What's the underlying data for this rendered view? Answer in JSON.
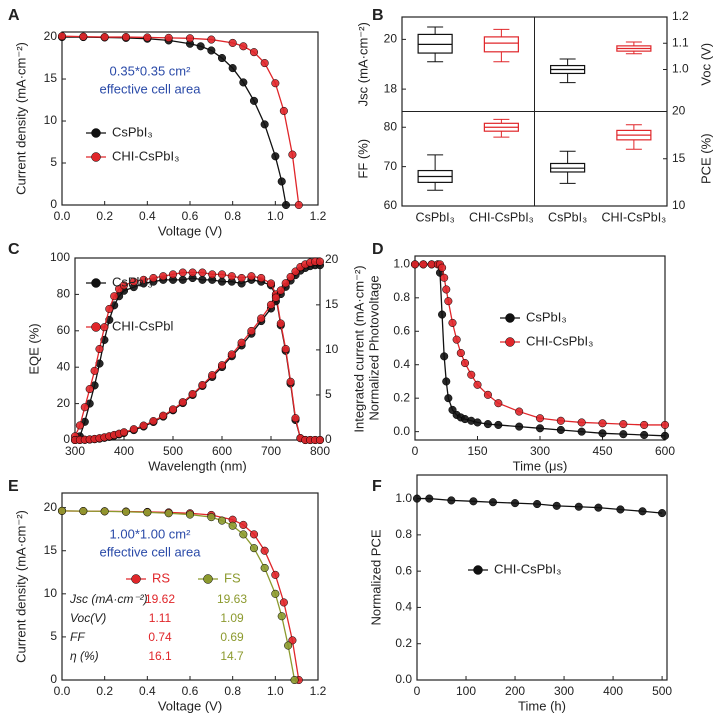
{
  "chart_data": [
    {
      "type": "line",
      "label": "A",
      "xlabel": "Voltage (V)",
      "ylabel": "Current density (mA·cm⁻²)",
      "xlim": [
        0,
        1.2
      ],
      "xticks": [
        {
          "value": 0,
          "label": "0.0"
        },
        0.2,
        0.4,
        0.6,
        0.8,
        {
          "value": 1,
          "label": "1.0"
        },
        1.2
      ],
      "ylim": [
        0,
        20.6
      ],
      "yticks": [
        0,
        5,
        10,
        15,
        20
      ],
      "annotations": [
        "0.35*0.35 cm²",
        "effective cell area"
      ],
      "annotation_color": "#2a4aa8",
      "series": [
        {
          "name": "CsPbI₃",
          "color": "#111111",
          "x": [
            0,
            0.1,
            0.2,
            0.3,
            0.4,
            0.5,
            0.6,
            0.65,
            0.7,
            0.75,
            0.8,
            0.85,
            0.9,
            0.95,
            1.0,
            1.03,
            1.05
          ],
          "values": [
            20.0,
            20.0,
            19.95,
            19.9,
            19.8,
            19.6,
            19.2,
            18.9,
            18.4,
            17.5,
            16.3,
            14.6,
            12.4,
            9.6,
            5.8,
            2.8,
            0
          ]
        },
        {
          "name": "CHI-CsPbI₃",
          "color": "#e0262a",
          "x": [
            0,
            0.1,
            0.2,
            0.3,
            0.4,
            0.5,
            0.6,
            0.7,
            0.8,
            0.85,
            0.9,
            0.95,
            1.0,
            1.04,
            1.08,
            1.11
          ],
          "values": [
            20.1,
            20.05,
            20.0,
            20.0,
            19.95,
            19.9,
            19.85,
            19.7,
            19.3,
            18.9,
            18.2,
            16.9,
            14.5,
            11.2,
            6.0,
            0
          ]
        }
      ]
    },
    {
      "type": "box",
      "label": "B",
      "categories": [
        "CsPbI₃",
        "CHI-CsPbI₃",
        "CsPbI₃",
        "CHI-CsPbI₃"
      ],
      "panels": [
        {
          "ylabel": "Jsc (mA·cm⁻²)",
          "side": "left",
          "ylim": [
            17.1,
            20.9
          ],
          "yticks": [
            18,
            20
          ],
          "boxes": [
            {
              "color": "#111111",
              "min": 19.1,
              "q1": 19.45,
              "median": 19.8,
              "q3": 20.2,
              "max": 20.5
            },
            {
              "color": "#e0262a",
              "min": 19.1,
              "q1": 19.5,
              "median": 19.85,
              "q3": 20.1,
              "max": 20.4
            }
          ]
        },
        {
          "ylabel": "Voc (V)",
          "side": "right",
          "ylim": [
            0.84,
            1.2
          ],
          "yticks": [
            {
              "value": 1,
              "label": "1.0"
            },
            1.1,
            1.2
          ],
          "boxes": [
            {
              "color": "#111111",
              "min": 0.95,
              "q1": 0.985,
              "median": 1.0,
              "q3": 1.015,
              "max": 1.04
            },
            {
              "color": "#e0262a",
              "min": 1.06,
              "q1": 1.07,
              "median": 1.08,
              "q3": 1.09,
              "max": 1.105
            }
          ]
        },
        {
          "ylabel": "FF (%)",
          "side": "left",
          "ylim": [
            60,
            84
          ],
          "yticks": [
            60,
            70,
            80
          ],
          "boxes": [
            {
              "color": "#111111",
              "min": 64,
              "q1": 66,
              "median": 67.5,
              "q3": 69,
              "max": 73
            },
            {
              "color": "#e0262a",
              "min": 77.5,
              "q1": 79,
              "median": 80,
              "q3": 81,
              "max": 82
            }
          ]
        },
        {
          "ylabel": "PCE (%)",
          "side": "right",
          "ylim": [
            10,
            20
          ],
          "yticks": [
            10,
            15,
            20
          ],
          "boxes": [
            {
              "color": "#111111",
              "min": 12.4,
              "q1": 13.6,
              "median": 14.0,
              "q3": 14.5,
              "max": 15.8
            },
            {
              "color": "#e0262a",
              "min": 16.0,
              "q1": 17.0,
              "median": 17.5,
              "q3": 18.0,
              "max": 18.6
            }
          ]
        }
      ]
    },
    {
      "type": "line",
      "label": "C",
      "xlabel": "Wavelength (nm)",
      "ylabel": "EQE (%)",
      "y2label": "Integrated current (mA·cm⁻²)",
      "xlim": [
        300,
        800
      ],
      "xticks": [
        300,
        400,
        500,
        600,
        700,
        800
      ],
      "ylim": [
        0,
        100
      ],
      "yticks": [
        0,
        20,
        40,
        60,
        80,
        100
      ],
      "y2lim": [
        0,
        20.2
      ],
      "y2ticks": [
        0,
        5,
        10,
        15,
        20
      ],
      "series": [
        {
          "name": "CsPbI₃",
          "color": "#111111",
          "x": [
            300,
            310,
            320,
            330,
            340,
            350,
            360,
            370,
            380,
            390,
            400,
            420,
            440,
            460,
            480,
            500,
            520,
            540,
            560,
            580,
            600,
            620,
            640,
            660,
            680,
            700,
            710,
            720,
            730,
            740,
            750,
            760,
            770,
            780,
            790,
            800
          ],
          "values": [
            0,
            2,
            10,
            20,
            30,
            42,
            55,
            66,
            74,
            79,
            82,
            84,
            86,
            87,
            88,
            88,
            88,
            89,
            88,
            88,
            87,
            87,
            86,
            88,
            87,
            85,
            79,
            63,
            49,
            31,
            11,
            1,
            0,
            0,
            0,
            0
          ]
        },
        {
          "name": "CHI-CsPbl",
          "color": "#e0262a",
          "x": [
            300,
            310,
            320,
            330,
            340,
            350,
            360,
            370,
            380,
            390,
            400,
            420,
            440,
            460,
            480,
            500,
            520,
            540,
            560,
            580,
            600,
            620,
            640,
            660,
            680,
            700,
            710,
            720,
            730,
            740,
            750,
            760,
            770,
            780,
            790,
            800
          ],
          "values": [
            2,
            8,
            18,
            28,
            38,
            50,
            62,
            72,
            79,
            83,
            85,
            87,
            88,
            89,
            90,
            91,
            92,
            92,
            92,
            91,
            91,
            90,
            89,
            90,
            89,
            86,
            80,
            64,
            50,
            32,
            12,
            1,
            0,
            0,
            0,
            0
          ]
        },
        {
          "axis": "y2",
          "color": "#111111",
          "x": [
            300,
            310,
            320,
            330,
            340,
            350,
            360,
            370,
            380,
            390,
            400,
            420,
            440,
            460,
            480,
            500,
            520,
            540,
            560,
            580,
            600,
            620,
            640,
            660,
            680,
            700,
            710,
            720,
            730,
            740,
            750,
            760,
            770,
            780,
            790,
            800
          ],
          "values": [
            0,
            0,
            0.02,
            0.05,
            0.09,
            0.15,
            0.24,
            0.35,
            0.48,
            0.62,
            0.78,
            1.1,
            1.5,
            2.0,
            2.6,
            3.3,
            4.1,
            5.0,
            6.0,
            7.0,
            8.1,
            9.3,
            10.5,
            11.8,
            13.2,
            14.6,
            15.4,
            16.2,
            17.0,
            17.7,
            18.3,
            18.8,
            19.1,
            19.3,
            19.4,
            19.4
          ]
        },
        {
          "axis": "y2",
          "color": "#e0262a",
          "x": [
            300,
            310,
            320,
            330,
            340,
            350,
            360,
            370,
            380,
            390,
            400,
            420,
            440,
            460,
            480,
            500,
            520,
            540,
            560,
            580,
            600,
            620,
            640,
            660,
            680,
            700,
            710,
            720,
            730,
            740,
            750,
            760,
            770,
            780,
            790,
            800
          ],
          "values": [
            0,
            0.01,
            0.03,
            0.07,
            0.12,
            0.2,
            0.3,
            0.42,
            0.56,
            0.7,
            0.86,
            1.2,
            1.6,
            2.1,
            2.7,
            3.4,
            4.2,
            5.1,
            6.1,
            7.2,
            8.3,
            9.5,
            10.8,
            12.1,
            13.5,
            15.0,
            15.8,
            16.6,
            17.4,
            18.1,
            18.7,
            19.2,
            19.5,
            19.7,
            19.8,
            19.8
          ]
        }
      ]
    },
    {
      "type": "line",
      "label": "D",
      "xlabel": "Time (μs)",
      "ylabel": "Normalized Photovoltage",
      "xlim": [
        0,
        600
      ],
      "xticks": [
        0,
        150,
        300,
        450,
        600
      ],
      "ylim": [
        -0.05,
        1.05
      ],
      "yticks": [
        {
          "value": 0,
          "label": "0.0"
        },
        0.2,
        0.4,
        0.6,
        0.8,
        {
          "value": 1,
          "label": "1.0"
        }
      ],
      "series": [
        {
          "name": "CsPbI₃",
          "color": "#111111",
          "x": [
            0,
            20,
            40,
            55,
            60,
            65,
            70,
            75,
            80,
            90,
            100,
            110,
            120,
            135,
            150,
            175,
            200,
            250,
            300,
            350,
            400,
            450,
            500,
            550,
            600
          ],
          "values": [
            1,
            1,
            1,
            1,
            0.95,
            0.7,
            0.45,
            0.3,
            0.2,
            0.13,
            0.1,
            0.085,
            0.075,
            0.065,
            0.055,
            0.045,
            0.04,
            0.03,
            0.02,
            0.01,
            0,
            -0.01,
            -0.015,
            -0.02,
            -0.025
          ]
        },
        {
          "name": "CHI-CsPbI₃",
          "color": "#e0262a",
          "x": [
            0,
            20,
            40,
            55,
            60,
            65,
            70,
            75,
            80,
            90,
            100,
            110,
            120,
            135,
            150,
            175,
            200,
            250,
            300,
            350,
            400,
            450,
            500,
            550,
            600
          ],
          "values": [
            1,
            1,
            1,
            1,
            1,
            0.98,
            0.92,
            0.85,
            0.78,
            0.65,
            0.55,
            0.47,
            0.41,
            0.34,
            0.28,
            0.22,
            0.17,
            0.12,
            0.08,
            0.065,
            0.055,
            0.05,
            0.045,
            0.04,
            0.04
          ]
        }
      ]
    },
    {
      "type": "line",
      "label": "E",
      "xlabel": "Voltage (V)",
      "ylabel": "Current density (mA·cm⁻²)",
      "xlim": [
        0,
        1.2
      ],
      "xticks": [
        {
          "value": 0,
          "label": "0.0"
        },
        0.2,
        0.4,
        0.6,
        0.8,
        {
          "value": 1,
          "label": "1.0"
        },
        1.2
      ],
      "ylim": [
        0,
        21.7
      ],
      "yticks": [
        0,
        5,
        10,
        15,
        20
      ],
      "annotations": [
        "1.00*1.00 cm²",
        "effective cell area"
      ],
      "annotation_color": "#2a4aa8",
      "series": [
        {
          "name": "RS",
          "color": "#e0262a",
          "x": [
            0,
            0.1,
            0.2,
            0.3,
            0.4,
            0.5,
            0.6,
            0.7,
            0.8,
            0.85,
            0.9,
            0.95,
            1.0,
            1.04,
            1.08,
            1.11
          ],
          "values": [
            19.62,
            19.6,
            19.58,
            19.55,
            19.5,
            19.45,
            19.35,
            19.15,
            18.6,
            18.0,
            16.9,
            15.0,
            12.2,
            9.0,
            4.6,
            0
          ]
        },
        {
          "name": "FS",
          "color": "#8c9a2e",
          "x": [
            0,
            0.1,
            0.2,
            0.3,
            0.4,
            0.5,
            0.6,
            0.7,
            0.75,
            0.8,
            0.85,
            0.9,
            0.95,
            1.0,
            1.03,
            1.06,
            1.09
          ],
          "values": [
            19.63,
            19.6,
            19.57,
            19.52,
            19.45,
            19.35,
            19.2,
            18.9,
            18.5,
            17.9,
            16.9,
            15.3,
            13.0,
            10.0,
            7.4,
            4.0,
            0
          ]
        }
      ],
      "table": [
        {
          "label": "Jsc (mA·cm⁻²)",
          "values": [
            19.62,
            19.63
          ]
        },
        {
          "label": "Voc(V)",
          "values": [
            1.11,
            1.09
          ]
        },
        {
          "label": "FF",
          "values": [
            0.74,
            0.69
          ]
        },
        {
          "label": "η (%)",
          "values": [
            16.1,
            14.7
          ]
        }
      ]
    },
    {
      "type": "line",
      "label": "F",
      "xlabel": "Time (h)",
      "ylabel": "Normalized PCE",
      "xlim": [
        0,
        510
      ],
      "xticks": [
        0,
        100,
        200,
        300,
        400,
        500
      ],
      "ylim": [
        0,
        1.13
      ],
      "yticks": [
        {
          "value": 0,
          "label": "0.0"
        },
        0.2,
        0.4,
        0.6,
        0.8,
        {
          "value": 1,
          "label": "1.0"
        }
      ],
      "series": [
        {
          "name": "CHI-CsPbI₃",
          "color": "#111111",
          "x": [
            0,
            25,
            70,
            115,
            155,
            200,
            245,
            285,
            330,
            370,
            415,
            460,
            500
          ],
          "values": [
            1.0,
            1.0,
            0.99,
            0.985,
            0.98,
            0.975,
            0.97,
            0.96,
            0.955,
            0.95,
            0.94,
            0.93,
            0.92
          ]
        }
      ]
    }
  ]
}
